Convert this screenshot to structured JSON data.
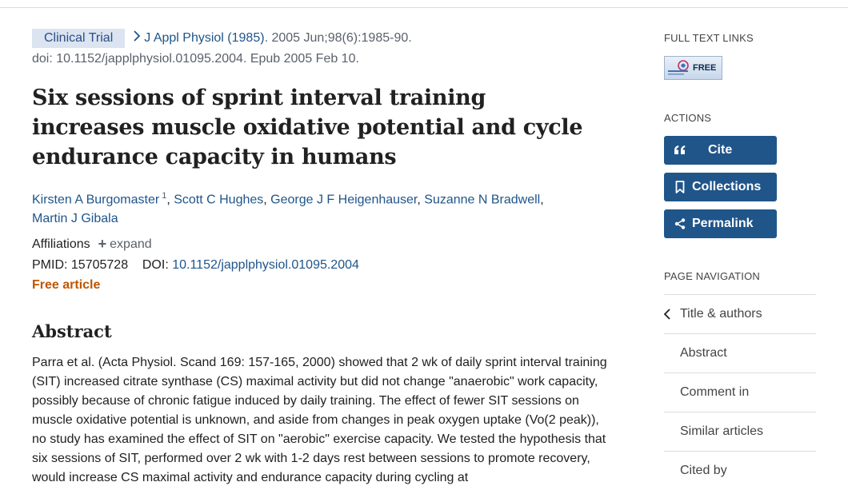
{
  "header": {
    "badge": "Clinical Trial",
    "journal": "J Appl Physiol (1985)",
    "citation": ". 2005 Jun;98(6):1985-90.",
    "doi_line": "doi: 10.1152/japplphysiol.01095.2004. Epub 2005 Feb 10."
  },
  "title": "Six sessions of sprint interval training increases muscle oxidative potential and cycle endurance capacity in humans",
  "authors": [
    {
      "name": "Kirsten A Burgomaster",
      "sup": "1"
    },
    {
      "name": "Scott C Hughes"
    },
    {
      "name": "George J F Heigenhauser"
    },
    {
      "name": "Suzanne N Bradwell"
    },
    {
      "name": "Martin J Gibala"
    }
  ],
  "affiliations": {
    "label": "Affiliations",
    "expand": "expand"
  },
  "ids": {
    "pmid_label": "PMID:",
    "pmid": "15705728",
    "doi_label": "DOI:",
    "doi": "10.1152/japplphysiol.01095.2004"
  },
  "free_article": "Free article",
  "abstract": {
    "heading": "Abstract",
    "text": "Parra et al. (Acta Physiol. Scand 169: 157-165, 2000) showed that 2 wk of daily sprint interval training (SIT) increased citrate synthase (CS) maximal activity but did not change \"anaerobic\" work capacity, possibly because of chronic fatigue induced by daily training. The effect of fewer SIT sessions on muscle oxidative potential is unknown, and aside from changes in peak oxygen uptake (Vo(2 peak)), no study has examined the effect of SIT on \"aerobic\" exercise capacity. We tested the hypothesis that six sessions of SIT, performed over 2 wk with 1-2 days rest between sessions to promote recovery, would increase CS maximal activity and endurance capacity during cycling at"
  },
  "sidebar": {
    "full_text_heading": "FULL TEXT LINKS",
    "full_text_button": {
      "label": "FREE",
      "logo_text": "american physiological society"
    },
    "actions_heading": "ACTIONS",
    "actions": [
      {
        "label": "Cite",
        "icon": "quote-icon"
      },
      {
        "label": "Collections",
        "icon": "bookmark-icon"
      },
      {
        "label": "Permalink",
        "icon": "share-icon"
      }
    ],
    "page_nav_heading": "PAGE NAVIGATION",
    "page_nav": [
      "Title & authors",
      "Abstract",
      "Comment in",
      "Similar articles",
      "Cited by"
    ]
  },
  "colors": {
    "link": "#20558a",
    "action_button": "#20558a",
    "free_article": "#c05600",
    "badge_bg": "#dbe4f0"
  }
}
